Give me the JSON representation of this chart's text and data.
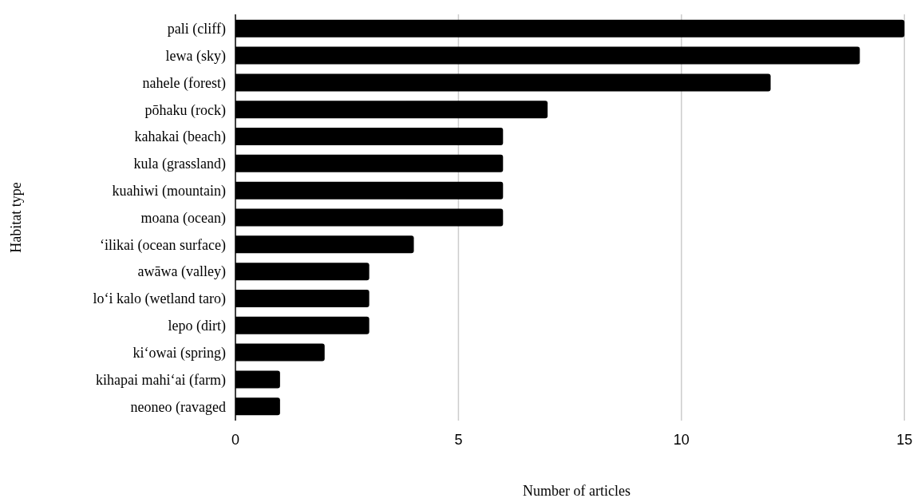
{
  "chart_data": {
    "type": "bar",
    "orientation": "horizontal",
    "xlabel": "Number of articles",
    "ylabel": "Habitat type",
    "categories": [
      "pali (cliff)",
      "lewa (sky)",
      "nahele (forest)",
      "pōhaku (rock)",
      "kahakai (beach)",
      "kula (grassland)",
      "kuahiwi (mountain)",
      "moana (ocean)",
      "‘ilikai (ocean surface)",
      "awāwa (valley)",
      "lo‘i kalo (wetland taro)",
      "lepo (dirt)",
      "ki‘owai (spring)",
      "kihapai mahi‘ai (farm)",
      "neoneo (ravaged"
    ],
    "values": [
      15,
      14,
      12,
      7,
      6,
      6,
      6,
      6,
      4,
      3,
      3,
      3,
      2,
      1,
      1
    ],
    "color": "#000000",
    "xlim": [
      0,
      15.3
    ],
    "xticks": [
      0,
      5,
      10,
      15
    ],
    "grid": "x"
  }
}
